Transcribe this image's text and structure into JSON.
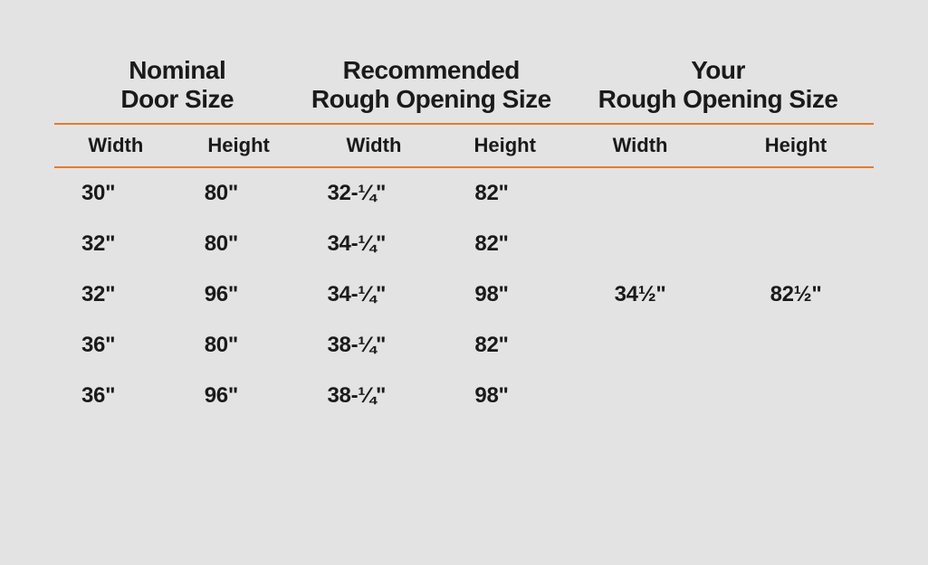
{
  "table": {
    "background_color": "#e3e3e3",
    "rule_color": "#e57b2c",
    "text_color": "#1a1a1a",
    "group_headers": {
      "nominal": {
        "line1": "Nominal",
        "line2": "Door Size"
      },
      "recommended": {
        "line1": "Recommended",
        "line2": "Rough Opening Size"
      },
      "your": {
        "line1": "Your",
        "line2": "Rough Opening Size"
      }
    },
    "sub_headers": {
      "width": "Width",
      "height": "Height"
    },
    "rows": [
      {
        "nominal_width": "30\"",
        "nominal_height": "80\"",
        "rec_width": "32-¼\"",
        "rec_height": "82\""
      },
      {
        "nominal_width": "32\"",
        "nominal_height": "80\"",
        "rec_width": "34-¼\"",
        "rec_height": "82\""
      },
      {
        "nominal_width": "32\"",
        "nominal_height": "96\"",
        "rec_width": "34-¼\"",
        "rec_height": "98\""
      },
      {
        "nominal_width": "36\"",
        "nominal_height": "80\"",
        "rec_width": "38-¼\"",
        "rec_height": "82\""
      },
      {
        "nominal_width": "36\"",
        "nominal_height": "96\"",
        "rec_width": "38-¼\"",
        "rec_height": "98\""
      }
    ],
    "your": {
      "width": "34½\"",
      "height": "82½\""
    },
    "styling": {
      "group_header_fontsize": 28,
      "group_header_fontweight": 900,
      "sub_header_fontsize": 22,
      "sub_header_fontweight": 700,
      "data_fontsize": 24,
      "data_fontweight": 900,
      "your_fontsize": 36,
      "your_fontweight": 900,
      "column_widths_pct": [
        15,
        15,
        18,
        14,
        19,
        19
      ],
      "row_padding_v": 14
    }
  }
}
